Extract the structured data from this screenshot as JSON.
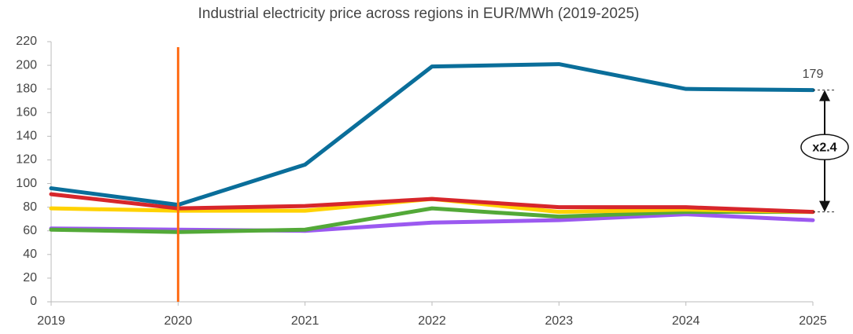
{
  "chart_data": {
    "type": "line",
    "title": "Industrial electricity price across regions in EUR/MWh (2019-2025)",
    "categories": [
      "2019",
      "2020",
      "2021",
      "2022",
      "2023",
      "2024",
      "2025"
    ],
    "series": [
      {
        "color": "#0a6e9a",
        "values": [
          96,
          82,
          116,
          199,
          201,
          180,
          179
        ]
      },
      {
        "color": "#d7262b",
        "values": [
          91,
          79,
          81,
          87,
          80,
          80,
          76
        ]
      },
      {
        "color": "#ffd200",
        "values": [
          79,
          77,
          77,
          87,
          76,
          78,
          76
        ]
      },
      {
        "color": "#53a938",
        "values": [
          61,
          59,
          61,
          79,
          72,
          76,
          76
        ]
      },
      {
        "color": "#9b59f0",
        "values": [
          62,
          61,
          60,
          67,
          69,
          74,
          69
        ]
      }
    ],
    "ylim": [
      0,
      220
    ],
    "yticks": [
      0,
      20,
      40,
      60,
      80,
      100,
      120,
      140,
      160,
      180,
      200,
      220
    ],
    "vline": "2020",
    "vline_color": "#ff6a13",
    "annotation": "x2.4"
  }
}
